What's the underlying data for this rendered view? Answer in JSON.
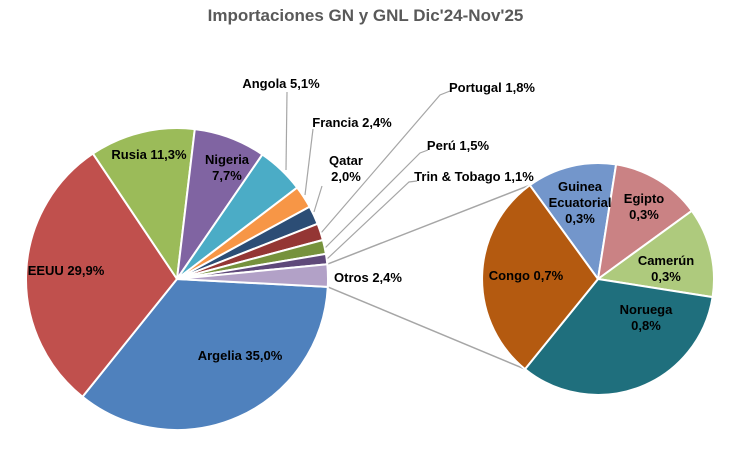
{
  "title": "Importaciones GN y GNL Dic'24-Nov'25",
  "colors": {
    "title_text": "#595959",
    "label_text": "#000000",
    "leader_line": "#A6A6A6",
    "slice_border": "#FFFFFF",
    "background": "#FFFFFF"
  },
  "chart_data": [
    {
      "type": "pie",
      "name": "main-pie",
      "title": "Importaciones GN y GNL Dic'24-Nov'25",
      "value_unit": "%",
      "start_angle_deg": 93,
      "slices": [
        {
          "id": "argelia",
          "label": "Argelia",
          "value": 35.0,
          "display": "Argelia 35,0%",
          "color": "#4F81BD",
          "label_placement": "inside"
        },
        {
          "id": "eeuu",
          "label": "EEUU",
          "value": 29.9,
          "display": "EEUU 29,9%",
          "color": "#C0504D",
          "label_placement": "inside"
        },
        {
          "id": "rusia",
          "label": "Rusia",
          "value": 11.3,
          "display": "Rusia 11,3%",
          "color": "#9BBB59",
          "label_placement": "inside"
        },
        {
          "id": "nigeria",
          "label": "Nigeria",
          "value": 7.7,
          "display": "Nigeria\n7,7%",
          "color": "#8064A2",
          "label_placement": "inside"
        },
        {
          "id": "angola",
          "label": "Angola",
          "value": 5.1,
          "display": "Angola 5,1%",
          "color": "#4BACC6",
          "label_placement": "callout"
        },
        {
          "id": "francia",
          "label": "Francia",
          "value": 2.4,
          "display": "Francia 2,4%",
          "color": "#F79646",
          "label_placement": "callout"
        },
        {
          "id": "qatar",
          "label": "Qatar",
          "value": 2.0,
          "display": "Qatar\n2,0%",
          "color": "#2C4D75",
          "label_placement": "callout"
        },
        {
          "id": "portugal",
          "label": "Portugal",
          "value": 1.8,
          "display": "Portugal 1,8%",
          "color": "#943634",
          "label_placement": "callout"
        },
        {
          "id": "peru",
          "label": "Perú",
          "value": 1.5,
          "display": "Perú 1,5%",
          "color": "#76923C",
          "label_placement": "callout"
        },
        {
          "id": "trin-tobago",
          "label": "Trin & Tobago",
          "value": 1.1,
          "display": "Trin & Tobago 1,1%",
          "color": "#5F497A",
          "label_placement": "callout"
        },
        {
          "id": "otros",
          "label": "Otros",
          "value": 2.4,
          "display": "Otros 2,4%",
          "color": "#B2A1C7",
          "label_placement": "callout"
        }
      ]
    },
    {
      "type": "pie",
      "name": "otros-breakdown-pie",
      "value_unit": "%",
      "start_angle_deg": 324,
      "slices": [
        {
          "id": "guinea-ecuatorial",
          "label": "Guinea Ecuatorial",
          "value": 0.3,
          "display": "Guinea\nEcuatorial\n0,3%",
          "color": "#7396CB",
          "label_placement": "inside"
        },
        {
          "id": "egipto",
          "label": "Egipto",
          "value": 0.3,
          "display": "Egipto\n0,3%",
          "color": "#CA8284",
          "label_placement": "inside"
        },
        {
          "id": "camerun",
          "label": "Camerún",
          "value": 0.3,
          "display": "Camerún 0,3%",
          "color": "#AECA7D",
          "label_placement": "inside"
        },
        {
          "id": "noruega",
          "label": "Noruega",
          "value": 0.8,
          "display": "Noruega 0,8%",
          "color": "#1F6F7D",
          "label_placement": "inside"
        },
        {
          "id": "congo",
          "label": "Congo",
          "value": 0.7,
          "display": "Congo 0,7%",
          "color": "#B45A10",
          "label_placement": "inside"
        }
      ]
    }
  ]
}
